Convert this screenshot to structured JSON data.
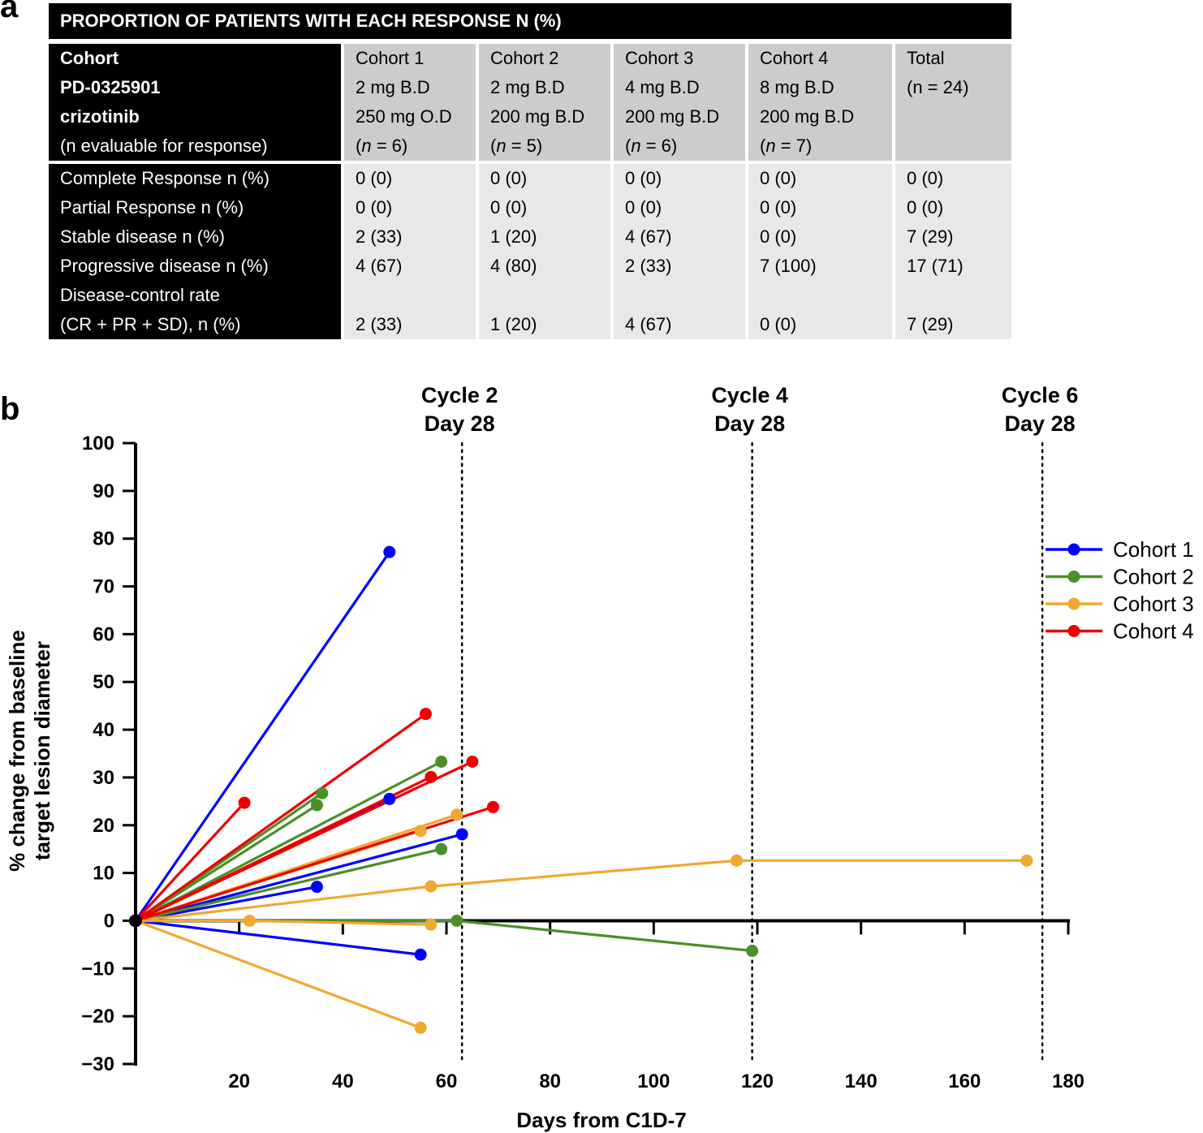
{
  "panel_labels": {
    "a": "a",
    "b": "b"
  },
  "table": {
    "title": "PROPORTION OF PATIENTS WITH EACH RESPONSE N (%)",
    "header_label": [
      "Cohort",
      "PD-0325901",
      "crizotinib",
      "(n evaluable for response)"
    ],
    "columns": [
      {
        "name": "Cohort 1",
        "dose1": "2 mg B.D",
        "dose2": "250 mg O.D",
        "n_open": "(",
        "n_var": "n",
        "n_rest": " = 6)"
      },
      {
        "name": "Cohort 2",
        "dose1": "2 mg B.D",
        "dose2": "200 mg B.D",
        "n_open": "(",
        "n_var": "n",
        "n_rest": " = 5)"
      },
      {
        "name": "Cohort 3",
        "dose1": "4 mg B.D",
        "dose2": "200 mg B.D",
        "n_open": "(",
        "n_var": "n",
        "n_rest": " = 6)"
      },
      {
        "name": "Cohort 4",
        "dose1": "8 mg B.D",
        "dose2": "200 mg B.D",
        "n_open": "(",
        "n_var": "n",
        "n_rest": " = 7)"
      },
      {
        "name": "Total",
        "dose1": "(n = 24)",
        "dose2": "",
        "n_open": "",
        "n_var": "",
        "n_rest": ""
      }
    ],
    "rows": [
      {
        "label": "Complete Response n (%)",
        "values": [
          "0 (0)",
          "0 (0)",
          "0 (0)",
          "0 (0)",
          "0 (0)"
        ]
      },
      {
        "label": "Partial Response n (%)",
        "values": [
          "0 (0)",
          "0 (0)",
          "0 (0)",
          "0 (0)",
          "0 (0)"
        ]
      },
      {
        "label": "Stable disease n (%)",
        "values": [
          "2 (33)",
          "1 (20)",
          "4 (67)",
          "0 (0)",
          "7 (29)"
        ]
      },
      {
        "label": "Progressive disease n (%)",
        "values": [
          "4 (67)",
          "4 (80)",
          "2 (33)",
          "7 (100)",
          "17 (71)"
        ]
      }
    ],
    "dcr_row": {
      "label1": "Disease-control rate",
      "label2": "(CR + PR + SD), n (%)",
      "values": [
        "2 (33)",
        "1 (20)",
        "4 (67)",
        "0 (0)",
        "7 (29)"
      ]
    }
  },
  "chart_data": {
    "type": "line",
    "title": "",
    "xlabel": "Days from C1D-7",
    "ylabel_lines": [
      "% change from baseline",
      "target lesion diameter"
    ],
    "xlim": [
      0,
      180
    ],
    "ylim": [
      -30,
      100
    ],
    "x_ticks": [
      20,
      40,
      60,
      80,
      100,
      120,
      140,
      160,
      180
    ],
    "y_ticks": [
      100,
      90,
      80,
      70,
      60,
      50,
      40,
      30,
      20,
      10,
      0,
      -10,
      -20,
      -30
    ],
    "y_tick_labels": [
      "100",
      "90",
      "80",
      "70",
      "60",
      "50",
      "40",
      "30",
      "20",
      "10",
      "0",
      "−10",
      "−20",
      "−30"
    ],
    "reference_lines": [
      {
        "x": 63,
        "label1": "Cycle 2",
        "label2": "Day 28"
      },
      {
        "x": 119,
        "label1": "Cycle 4",
        "label2": "Day 28"
      },
      {
        "x": 175,
        "label1": "Cycle 6",
        "label2": "Day 28"
      }
    ],
    "legend": {
      "position": "right",
      "entries": [
        "Cohort 1",
        "Cohort 2",
        "Cohort 3",
        "Cohort 4"
      ]
    },
    "series": [
      {
        "name": "Cohort 1",
        "color": "#0000ff",
        "lines": [
          [
            [
              0,
              0
            ],
            [
              49,
              77.2
            ]
          ],
          [
            [
              0,
              0
            ],
            [
              49,
              25.5
            ]
          ],
          [
            [
              0,
              0
            ],
            [
              63,
              18.1
            ]
          ],
          [
            [
              0,
              0
            ],
            [
              35,
              7.1
            ]
          ],
          [
            [
              0,
              0
            ],
            [
              55,
              -7.1
            ]
          ]
        ]
      },
      {
        "name": "Cohort 2",
        "color": "#4a8f29",
        "lines": [
          [
            [
              0,
              0
            ],
            [
              59,
              33.3
            ]
          ],
          [
            [
              0,
              0
            ],
            [
              36,
              26.7
            ]
          ],
          [
            [
              0,
              0
            ],
            [
              35,
              24.2
            ]
          ],
          [
            [
              0,
              0
            ],
            [
              59,
              15.0
            ]
          ],
          [
            [
              0,
              0
            ],
            [
              62,
              0
            ],
            [
              119,
              -6.3
            ]
          ]
        ]
      },
      {
        "name": "Cohort 3",
        "color": "#f0a830",
        "lines": [
          [
            [
              0,
              0
            ],
            [
              62,
              22.2
            ]
          ],
          [
            [
              0,
              0
            ],
            [
              55,
              18.8
            ]
          ],
          [
            [
              0,
              0
            ],
            [
              57,
              7.2
            ],
            [
              116,
              12.6
            ],
            [
              172,
              12.6
            ]
          ],
          [
            [
              0,
              0
            ],
            [
              22,
              0
            ],
            [
              57,
              -0.8
            ]
          ],
          [
            [
              0,
              0
            ],
            [
              55,
              -22.4
            ]
          ]
        ]
      },
      {
        "name": "Cohort 4",
        "color": "#ee0000",
        "lines": [
          [
            [
              0,
              0
            ],
            [
              56,
              43.3
            ]
          ],
          [
            [
              0,
              0
            ],
            [
              65,
              33.3
            ]
          ],
          [
            [
              0,
              0
            ],
            [
              57,
              30.1
            ]
          ],
          [
            [
              0,
              0
            ],
            [
              69,
              23.8
            ]
          ],
          [
            [
              0,
              0
            ],
            [
              21,
              24.7
            ]
          ]
        ]
      }
    ]
  }
}
